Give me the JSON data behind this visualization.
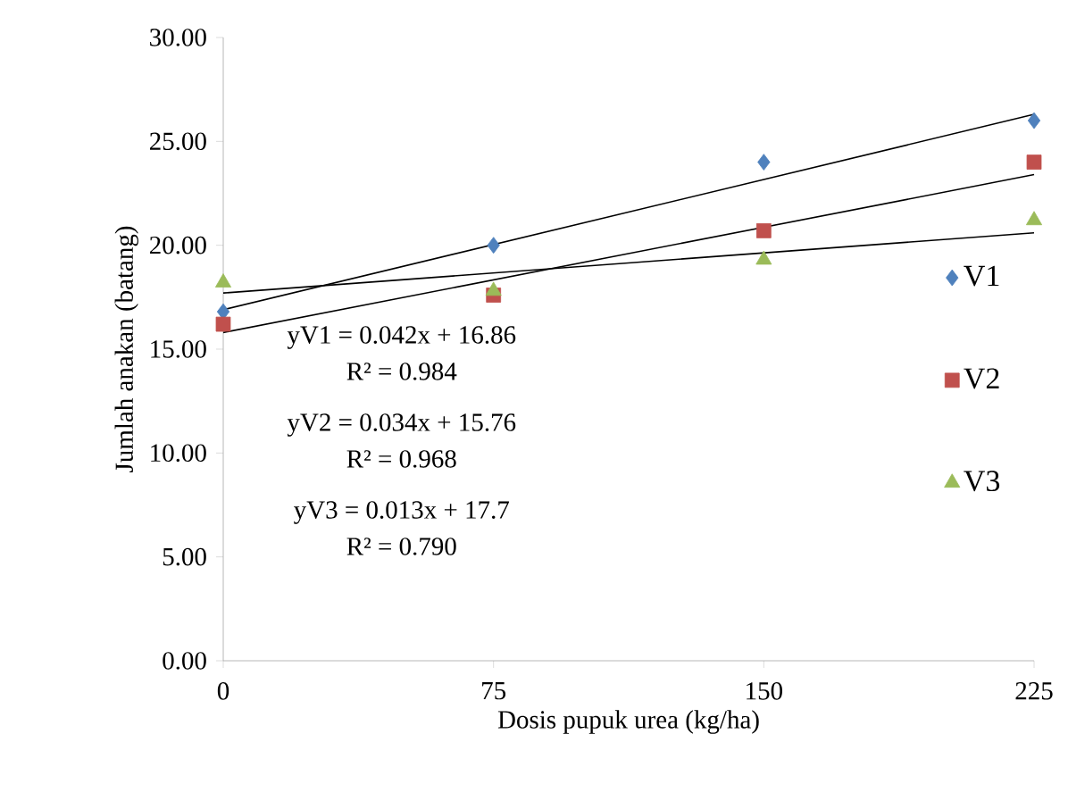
{
  "chart_data": {
    "type": "scatter",
    "xlabel": "Dosis pupuk urea (kg/ha)",
    "ylabel": "Jumlah anakan (batang)",
    "xlim": [
      0,
      225
    ],
    "xticks": [
      0,
      75,
      150,
      225
    ],
    "ylim": [
      0,
      30
    ],
    "yticks": [
      {
        "value": 0,
        "label": "0.00"
      },
      {
        "value": 5,
        "label": "5.00"
      },
      {
        "value": 10,
        "label": "10.00"
      },
      {
        "value": 15,
        "label": "15.00"
      },
      {
        "value": 20,
        "label": "20.00"
      },
      {
        "value": 25,
        "label": "25.00"
      },
      {
        "value": 30,
        "label": "30.00"
      }
    ],
    "grid": false,
    "legend": "right",
    "series": [
      {
        "name": "V1",
        "color": "#4f81bd",
        "marker": "diamond",
        "x": [
          0,
          75,
          150,
          225
        ],
        "values": [
          16.8,
          20.0,
          24.0,
          26.0
        ]
      },
      {
        "name": "V2",
        "color": "#c0504d",
        "marker": "square",
        "x": [
          0,
          75,
          150,
          225
        ],
        "values": [
          16.2,
          17.6,
          20.7,
          24.0
        ]
      },
      {
        "name": "V3",
        "color": "#9bbb59",
        "marker": "triangle",
        "x": [
          0,
          75,
          150,
          225
        ],
        "values": [
          18.2,
          17.8,
          19.3,
          21.2
        ]
      },
      {
        "type": "line",
        "color": "#000000",
        "x": [
          0,
          225
        ],
        "values": [
          16.9,
          26.3
        ]
      },
      {
        "type": "line",
        "color": "#000000",
        "x": [
          0,
          225
        ],
        "values": [
          15.8,
          23.4
        ]
      },
      {
        "type": "line",
        "color": "#000000",
        "x": [
          0,
          225
        ],
        "values": [
          17.7,
          20.6
        ]
      }
    ],
    "annotations": [
      "yV1 = 0.042x + 16.86",
      "R² = 0.984",
      "yV2 = 0.034x + 15.76",
      "R² = 0.968",
      "yV3 = 0.013x + 17.7",
      "R² = 0.790"
    ]
  }
}
